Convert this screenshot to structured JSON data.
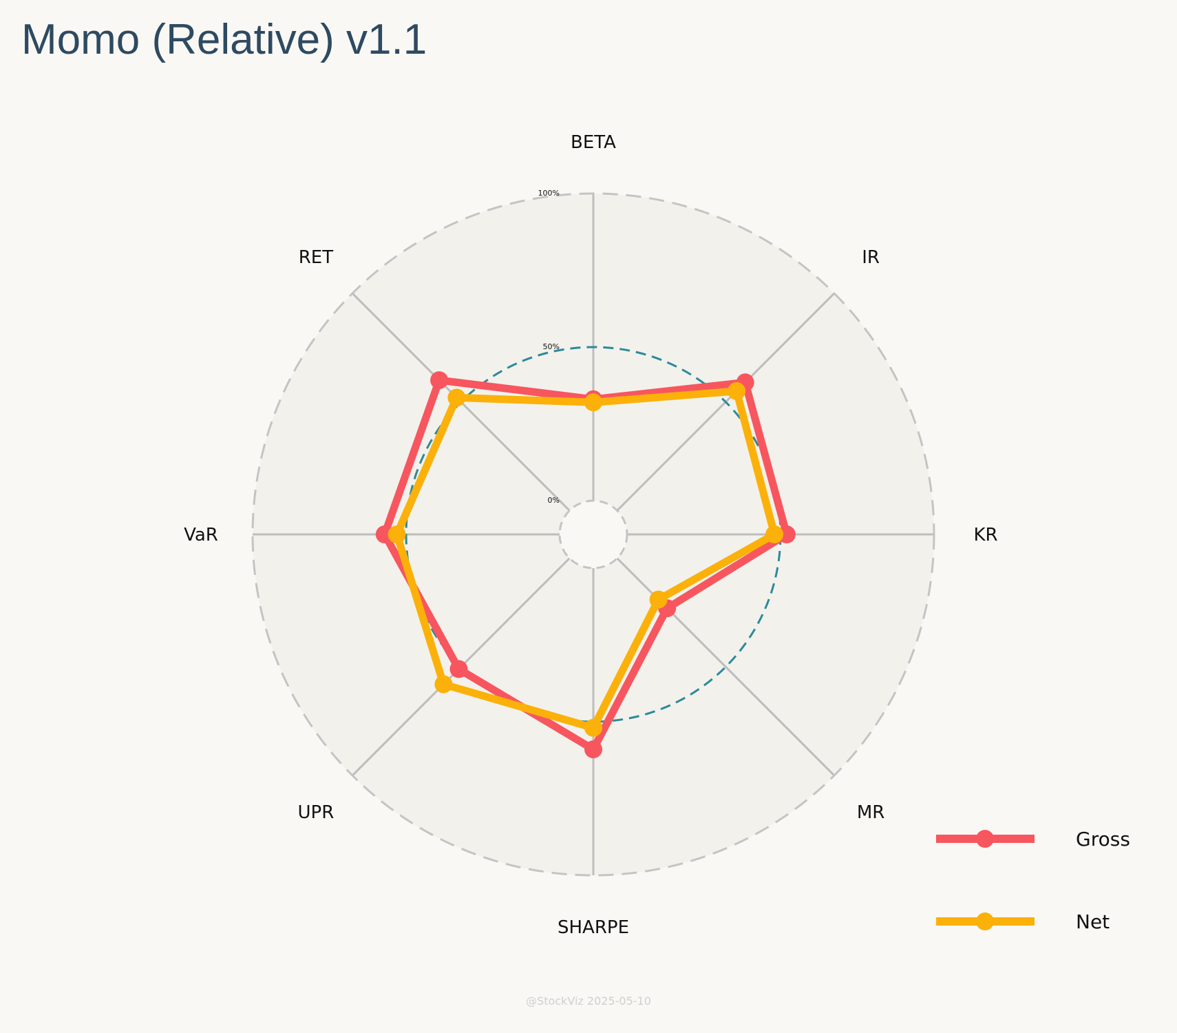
{
  "page": {
    "title": "Momo (Relative) v1.1",
    "watermark": "@StockViz 2025-05-10"
  },
  "colors": {
    "title": "#2e4a62",
    "background": "#f9f8f4",
    "plot_fill": "#f2f1ec",
    "spoke": "#bdbdbd",
    "outer_ring": "#c4c4c4",
    "mid_ring": "#2b8a99",
    "gross": "#f7565f",
    "net": "#fbb109"
  },
  "chart_data": {
    "type": "radar",
    "title": "Momo (Relative) v1.1",
    "axes": [
      "BETA",
      "IR",
      "KR",
      "MR",
      "SHARPE",
      "UPR",
      "VaR",
      "RET"
    ],
    "range": [
      0,
      100
    ],
    "ring_labels": [
      "0%",
      "50%",
      "100%"
    ],
    "reference_ring": 50,
    "series": [
      {
        "name": "Gross",
        "color": "#f7565f",
        "values": [
          33,
          59,
          52,
          23,
          59,
          51,
          57,
          60
        ]
      },
      {
        "name": "Net",
        "color": "#fbb109",
        "values": [
          32,
          55,
          48,
          19,
          52,
          58,
          53,
          52
        ]
      }
    ],
    "legend_position": "bottom-right",
    "grid": true
  }
}
